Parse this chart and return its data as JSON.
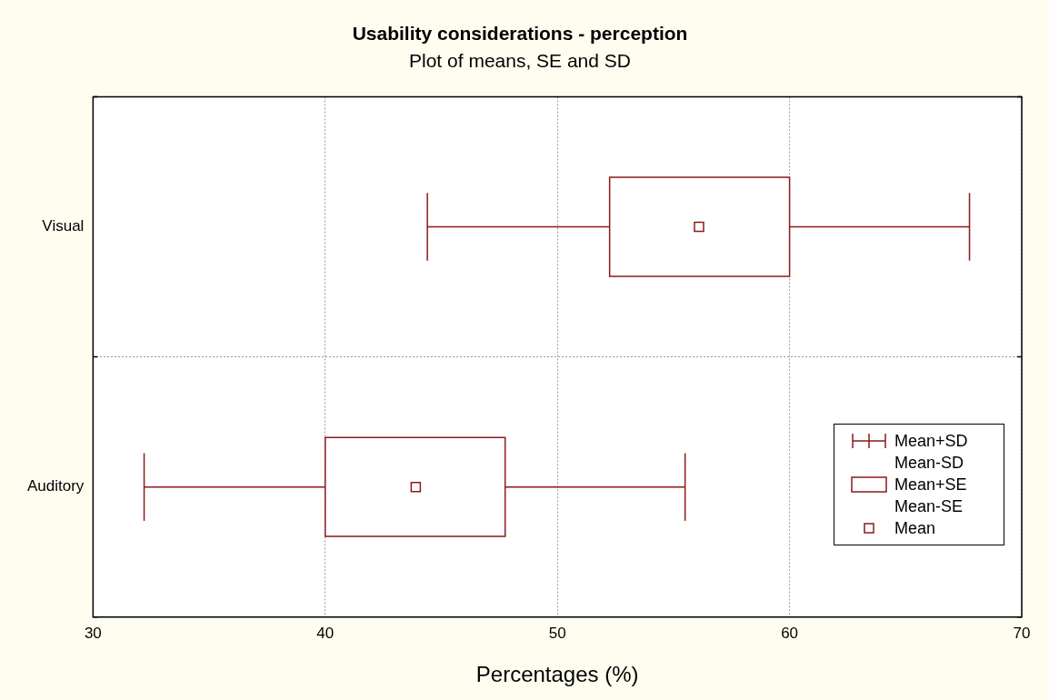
{
  "chart_data": {
    "type": "box",
    "title": "Usability considerations - perception",
    "subtitle": "Plot of means, SE and SD",
    "xlabel": "Percentages (%)",
    "orientation": "horizontal",
    "categories": [
      "Visual",
      "Auditory"
    ],
    "boxes": [
      {
        "low": 44.4,
        "q1": 52.25,
        "median": 56.1,
        "q3": 60.0,
        "high": 67.75
      },
      {
        "low": 32.2,
        "q1": 40.0,
        "median": 43.9,
        "q3": 47.75,
        "high": 55.5
      }
    ],
    "color": "#8b1a1a",
    "xlim": [
      30,
      70
    ],
    "xticks": [
      30,
      40,
      50,
      60,
      70
    ],
    "grid": true,
    "marker": "square",
    "annotations": [
      "Mean+SD",
      "Mean-SD",
      "Mean+SE",
      "Mean-SE",
      "Mean"
    ]
  }
}
